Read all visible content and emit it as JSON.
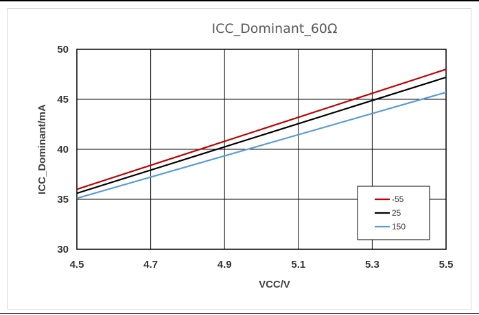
{
  "chart_data": {
    "type": "line",
    "title": "ICC_Dominant_60Ω",
    "xlabel": "VCC/V",
    "ylabel": "ICC_Dominant/mA",
    "xlim": [
      4.5,
      5.5
    ],
    "ylim": [
      30,
      50
    ],
    "xticks": [
      "4.5",
      "4.7",
      "4.9",
      "5.1",
      "5.3",
      "5.5"
    ],
    "yticks": [
      "30",
      "35",
      "40",
      "45",
      "50"
    ],
    "x": [
      4.5,
      5.5
    ],
    "series": [
      {
        "name": "-55",
        "color": "#c00000",
        "values": [
          36.0,
          48.0
        ]
      },
      {
        "name": "25",
        "color": "#000000",
        "values": [
          35.6,
          47.2
        ]
      },
      {
        "name": "150",
        "color": "#5b9bd5",
        "values": [
          35.1,
          45.7
        ]
      }
    ],
    "grid": true,
    "legend": "bottom-right"
  }
}
